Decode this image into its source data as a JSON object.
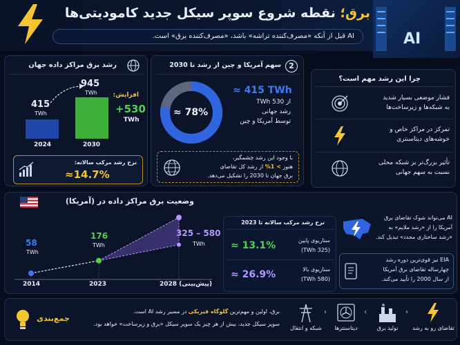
{
  "header": {
    "title_prefix": "برق؛",
    "title_main": "نقطه شروع سوپر سیکل جدید کامودیتی‌ها",
    "subtitle": "AI قبل از آنکه «مصرف‌کننده تراشه» باشد، «مصرف‌کننده برق» است.",
    "banner_text": "AI",
    "icon": "lightning-bolt-icon"
  },
  "growth_panel": {
    "title": "رشد برق مراکز داده جهان",
    "bar_2024_value": "415",
    "bar_2024_unit": "TWh",
    "bar_2024_year": "2024",
    "bar_2030_value": "945",
    "bar_2030_unit": "TWh",
    "bar_2030_year": "2030",
    "increase_label": "افزایش:",
    "increase_value": "+530",
    "increase_unit": "TWh",
    "cagr_label": "نرخ رشد مرکب سالانه:",
    "cagr_value": "≈14.7%",
    "icon": "globe-icon"
  },
  "share_panel": {
    "number": "2",
    "title": "سهم آمریکا و چین از رشد تا 2030",
    "donut_label": "≈ 78%",
    "donut_percent": 78,
    "stat_value": "≈ 415 TWh",
    "stat_line1": "از 530 TWh",
    "stat_line2": "رشد جهانی",
    "stat_line3": "توسط آمریکا و چین",
    "note_line1": "با وجود این رشد چشمگیر،",
    "note_line2_pre": "هنوز",
    "note_line2_highlight": "> 1%",
    "note_line2_post": "از رشد کل تقاضای",
    "note_line3": "برق جهان تا 2030 را تشکیل می‌دهد."
  },
  "why_panel": {
    "title": "چرا این رشد مهم است؟",
    "items": [
      {
        "line1": "فشار موضعی بسیار شدید",
        "line2": "به شبکه‌ها و زیرساخت‌ها",
        "icon": "target-icon"
      },
      {
        "line1": "تمرکز در مراکز خاص و",
        "line2": "خوشه‌های دیتاسنتری",
        "icon": "lightning-icon"
      },
      {
        "line1": "تأثیر بزرگ‌تر بر شبکه محلی",
        "line2": "نسبت به سهم جهانی",
        "icon": "globe-grid-icon"
      }
    ]
  },
  "us_panel": {
    "title": "وضعیت برق مراکز داده در (آمریکا)",
    "point_2014_value": "58",
    "point_2014_unit": "TWh",
    "point_2023_value": "176",
    "point_2023_unit": "TWh",
    "point_2028_value": "325 – 580",
    "point_2028_unit": "TWh",
    "year_2014": "2014",
    "year_2023": "2023",
    "year_2028": "2028 (پیش‌بینی)",
    "table_title": "نرخ رشد مرکب سالانه تا 2023",
    "low_label": "سناریوی پایین",
    "low_sub": "(325 TWh)",
    "low_value": "≈ 13.1%",
    "high_label": "سناریوی بالا",
    "high_sub": "(580 TWh)",
    "high_value": "≈ 26.9%",
    "ai_line1": "AI می‌تواند شوک تقاضای برق",
    "ai_line2": "آمریکا را از «رشد ملایم» به",
    "ai_line3": "«رشد ساختاری مجدد» تبدیل کند.",
    "eia_line1": "EIA نیز قوی‌ترین دوره رشد",
    "eia_line2": "چهارساله تقاضای برق آمریکا",
    "eia_line3": "از سال 2000 را تأیید می‌کند."
  },
  "chart_data": {
    "type": "line",
    "x": [
      "2014",
      "2023",
      "2028 (پیش‌بینی)"
    ],
    "series": [
      {
        "values": [
          58,
          176,
          325
        ]
      },
      {
        "values": [
          58,
          176,
          580
        ]
      }
    ],
    "colors": {
      "actual": "#4fd34d",
      "projection": "#b895ff",
      "start": "#3e7bf2"
    }
  },
  "summary": {
    "title": "جمع‌بندی",
    "line1_pre": "برق، اولین و مهم‌ترین",
    "line1_highlight": "گلوگاه فیزیکی",
    "line1_post": "در مسیر رشد AI است.",
    "line2": "سوپر سیکل جدید، بیش از هر چیز یک سوپر سیکل «برق و زیرساخت» خواهد بود.",
    "chain": [
      {
        "label": "تقاضای رو به رشد",
        "icon": "lightning-icon"
      },
      {
        "label": "تولید برق",
        "icon": "power-plant-icon"
      },
      {
        "label": "دیتاسنترها",
        "icon": "fan-icon"
      },
      {
        "label": "شبکه و انتقال",
        "icon": "transmission-tower-icon"
      }
    ]
  }
}
